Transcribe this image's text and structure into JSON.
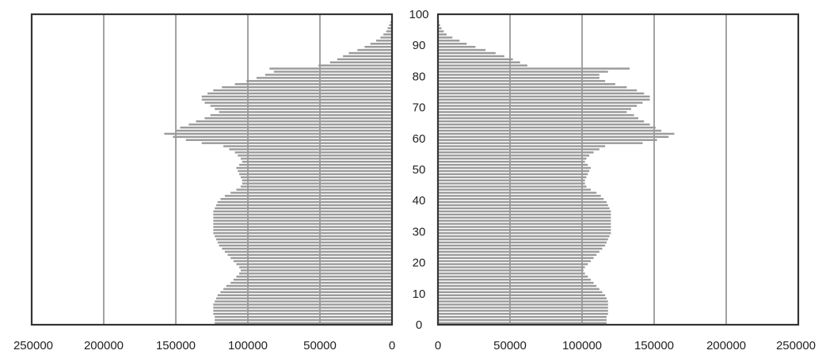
{
  "chart_data": {
    "type": "bar",
    "orientation": "horizontal",
    "layout": "population-pyramid",
    "title": "",
    "age_ticks": [
      "0",
      "10",
      "20",
      "30",
      "40",
      "50",
      "60",
      "70",
      "80",
      "90",
      "100"
    ],
    "left_axis_ticks": [
      "250000",
      "200000",
      "150000",
      "100000",
      "50000",
      "0"
    ],
    "right_axis_ticks": [
      "0",
      "50000",
      "100000",
      "150000",
      "200000",
      "250000"
    ],
    "xlim": [
      0,
      250000
    ],
    "ylim": [
      0,
      100
    ],
    "grid": true,
    "age_values": [
      0,
      1,
      2,
      3,
      4,
      5,
      6,
      7,
      8,
      9,
      10,
      11,
      12,
      13,
      14,
      15,
      16,
      17,
      18,
      19,
      20,
      21,
      22,
      23,
      24,
      25,
      26,
      27,
      28,
      29,
      30,
      31,
      32,
      33,
      34,
      35,
      36,
      37,
      38,
      39,
      40,
      41,
      42,
      43,
      44,
      45,
      46,
      47,
      48,
      49,
      50,
      51,
      52,
      53,
      54,
      55,
      56,
      57,
      58,
      59,
      60,
      61,
      62,
      63,
      64,
      65,
      66,
      67,
      68,
      69,
      70,
      71,
      72,
      73,
      74,
      75,
      76,
      77,
      78,
      79,
      80,
      81,
      82,
      83,
      84,
      85,
      86,
      87,
      88,
      89,
      90,
      91,
      92,
      93,
      94,
      95,
      96,
      97,
      98,
      99
    ],
    "series": [
      {
        "side": "left",
        "values": [
          123000,
          123000,
          123000,
          124000,
          124000,
          124000,
          124000,
          123000,
          122000,
          121000,
          119000,
          117000,
          115000,
          112000,
          110000,
          108000,
          106000,
          105000,
          106000,
          108000,
          110000,
          112000,
          114000,
          116000,
          118000,
          120000,
          121000,
          122000,
          123000,
          124000,
          124000,
          124000,
          124000,
          124000,
          124000,
          124000,
          124000,
          123000,
          122000,
          121000,
          119000,
          116000,
          112000,
          108000,
          105000,
          104000,
          104000,
          105000,
          106000,
          107000,
          108000,
          106000,
          104000,
          105000,
          107000,
          109000,
          113000,
          117000,
          132000,
          143000,
          152000,
          158000,
          150000,
          147000,
          141000,
          136000,
          130000,
          126000,
          120000,
          123000,
          126000,
          130000,
          132000,
          132000,
          128000,
          124000,
          118000,
          109000,
          101000,
          94000,
          88000,
          82000,
          85000,
          51000,
          43000,
          38000,
          34000,
          30000,
          24000,
          19000,
          15000,
          11000,
          8000,
          6000,
          4000,
          3000,
          2000,
          1000,
          500,
          200
        ]
      },
      {
        "side": "right",
        "values": [
          117000,
          117000,
          117000,
          118000,
          118000,
          118000,
          118000,
          118000,
          117000,
          116000,
          114000,
          112000,
          110000,
          108000,
          106000,
          104000,
          102000,
          101000,
          102000,
          104000,
          106000,
          108000,
          110000,
          112000,
          114000,
          116000,
          117000,
          118000,
          119000,
          120000,
          120000,
          120000,
          120000,
          120000,
          120000,
          120000,
          120000,
          119000,
          118000,
          117000,
          115000,
          113000,
          110000,
          106000,
          103000,
          102000,
          102000,
          103000,
          104000,
          105000,
          106000,
          104000,
          102000,
          103000,
          105000,
          108000,
          112000,
          116000,
          142000,
          152000,
          160000,
          164000,
          155000,
          151000,
          147000,
          143000,
          139000,
          136000,
          131000,
          134000,
          138000,
          142000,
          147000,
          147000,
          143000,
          138000,
          131000,
          123000,
          116000,
          112000,
          112000,
          118000,
          133000,
          62000,
          57000,
          52000,
          46000,
          40000,
          33000,
          26000,
          20000,
          15000,
          10000,
          6000,
          4000,
          2500,
          1500,
          800,
          300,
          100
        ]
      }
    ]
  }
}
